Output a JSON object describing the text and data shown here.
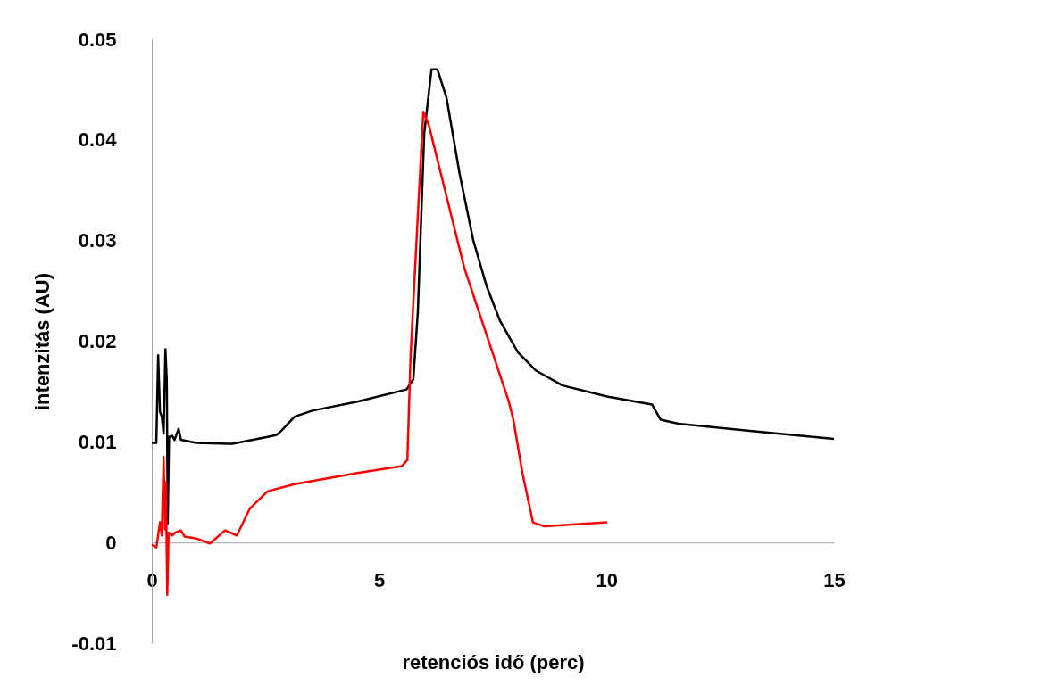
{
  "chart_data": {
    "type": "line",
    "xlabel": "retenciós idő (perc)",
    "ylabel": "intenzitás (AU)",
    "xlim": [
      0,
      15
    ],
    "xticks": [
      0,
      5,
      10,
      15
    ],
    "ylim": [
      -0.01,
      0.05
    ],
    "yticks": [
      -0.01,
      0,
      0.01,
      0.02,
      0.03,
      0.04,
      0.05
    ],
    "grid": false,
    "series": [
      {
        "color": "#000000",
        "x": [
          0,
          0.1,
          0.14,
          0.18,
          0.22,
          0.26,
          0.3,
          0.33,
          0.35,
          0.38,
          0.45,
          0.5,
          0.59,
          0.64,
          0.98,
          1.77,
          2.55,
          2.75,
          2.85,
          3.14,
          3.53,
          4.52,
          5.6,
          5.75,
          5.85,
          5.99,
          6.15,
          6.28,
          6.48,
          6.77,
          7.07,
          7.36,
          7.66,
          8.05,
          8.44,
          9.03,
          10.01,
          11.0,
          11.19,
          11.58,
          13.35,
          15.0
        ],
        "values": [
          0.0099,
          0.0099,
          0.0186,
          0.013,
          0.0125,
          0.0108,
          0.0192,
          0.0161,
          0.0019,
          0.0105,
          0.0106,
          0.0102,
          0.0113,
          0.0102,
          0.0099,
          0.0098,
          0.0105,
          0.0107,
          0.0111,
          0.0125,
          0.0131,
          0.014,
          0.0152,
          0.0162,
          0.0229,
          0.0406,
          0.047,
          0.047,
          0.0442,
          0.0366,
          0.03,
          0.0255,
          0.022,
          0.0189,
          0.0171,
          0.0156,
          0.0145,
          0.0137,
          0.0122,
          0.0118,
          0.011,
          0.0103
        ]
      },
      {
        "color": "#ff0000",
        "x": [
          0,
          0.1,
          0.18,
          0.22,
          0.26,
          0.29,
          0.31,
          0.34,
          0.37,
          0.45,
          0.52,
          0.64,
          0.72,
          0.98,
          1.28,
          1.61,
          1.87,
          2.16,
          2.55,
          3.14,
          4.52,
          5.5,
          5.62,
          5.69,
          5.79,
          5.97,
          6.09,
          6.48,
          6.87,
          7.46,
          7.85,
          7.95,
          8.15,
          8.38,
          8.64,
          10.01
        ],
        "values": [
          -0.0002,
          -0.0005,
          0.002,
          0.0007,
          0.0085,
          0.0013,
          0.006,
          -0.0052,
          0.001,
          0.0007,
          0.001,
          0.0012,
          0.0006,
          0.0004,
          -0.0001,
          0.0012,
          0.0007,
          0.0034,
          0.0051,
          0.0058,
          0.0069,
          0.0076,
          0.0082,
          0.0185,
          0.0273,
          0.0428,
          0.0415,
          0.0344,
          0.0273,
          0.0193,
          0.014,
          0.0122,
          0.0069,
          0.002,
          0.0016,
          0.002
        ]
      }
    ]
  }
}
